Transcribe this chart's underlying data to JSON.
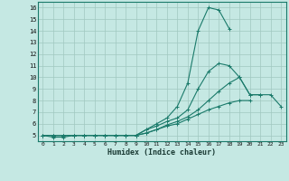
{
  "xlabel": "Humidex (Indice chaleur)",
  "xlim": [
    -0.5,
    23.5
  ],
  "ylim": [
    4.5,
    16.5
  ],
  "xticks": [
    0,
    1,
    2,
    3,
    4,
    5,
    6,
    7,
    8,
    9,
    10,
    11,
    12,
    13,
    14,
    15,
    16,
    17,
    18,
    19,
    20,
    21,
    22,
    23
  ],
  "yticks": [
    5,
    6,
    7,
    8,
    9,
    10,
    11,
    12,
    13,
    14,
    15,
    16
  ],
  "bg_color": "#c5e8e3",
  "line_color": "#1a7a6a",
  "grid_color": "#a0c8c0",
  "lines": [
    [
      5,
      4.85,
      4.85,
      5,
      5,
      5,
      5,
      5,
      5,
      5,
      5.5,
      6.0,
      6.5,
      7.5,
      9.5,
      14.0,
      16.0,
      15.8,
      14.2,
      null,
      null,
      null,
      null,
      null
    ],
    [
      5,
      5,
      5,
      5,
      5,
      5,
      5,
      5,
      5,
      5,
      5.5,
      5.8,
      6.2,
      6.5,
      7.2,
      9.0,
      10.5,
      11.2,
      11.0,
      10.0,
      8.5,
      8.5,
      null,
      null
    ],
    [
      5,
      5,
      5,
      5,
      5,
      5,
      5,
      5,
      5,
      5,
      5.2,
      5.5,
      5.9,
      6.2,
      6.6,
      7.2,
      8.0,
      8.8,
      9.5,
      10.0,
      8.5,
      8.5,
      8.5,
      7.5
    ],
    [
      5,
      5,
      5,
      5,
      5,
      5,
      5,
      5,
      5,
      5,
      5.2,
      5.5,
      5.8,
      6.0,
      6.4,
      6.8,
      7.2,
      7.5,
      7.8,
      8.0,
      8.0,
      null,
      null,
      null
    ]
  ]
}
